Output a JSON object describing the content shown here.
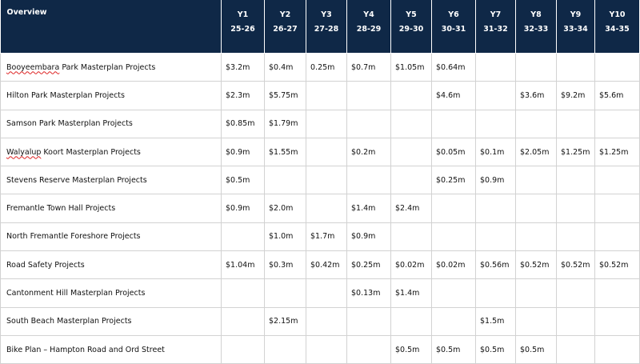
{
  "header": {
    "overview_label": "Overview",
    "years": [
      {
        "label": "Y1",
        "span": "25-26"
      },
      {
        "label": "Y2",
        "span": "26-27"
      },
      {
        "label": "Y3",
        "span": "27-28"
      },
      {
        "label": "Y4",
        "span": "28-29"
      },
      {
        "label": "Y5",
        "span": "29-30"
      },
      {
        "label": "Y6",
        "span": "30-31"
      },
      {
        "label": "Y7",
        "span": "31-32"
      },
      {
        "label": "Y8",
        "span": "32-33"
      },
      {
        "label": "Y9",
        "span": "33-34"
      },
      {
        "label": "Y10",
        "span": "34-35"
      }
    ]
  },
  "rows": [
    {
      "name_spell": "Booyeembara",
      "name_rest": " Park Masterplan Projects",
      "values": [
        "$3.2m",
        "$0.4m",
        "0.25m",
        "$0.7m",
        "$1.05m",
        "$0.64m",
        "",
        "",
        "",
        ""
      ]
    },
    {
      "name_spell": "",
      "name_rest": "Hilton Park Masterplan Projects",
      "values": [
        "$2.3m",
        "$5.75m",
        "",
        "",
        "",
        "$4.6m",
        "",
        "$3.6m",
        "$9.2m",
        "$5.6m"
      ]
    },
    {
      "name_spell": "",
      "name_rest": "Samson Park Masterplan Projects",
      "values": [
        "$0.85m",
        "$1.79m",
        "",
        "",
        "",
        "",
        "",
        "",
        "",
        ""
      ]
    },
    {
      "name_spell": "Walyalup",
      "name_rest": " Koort Masterplan Projects",
      "values": [
        "$0.9m",
        "$1.55m",
        "",
        "$0.2m",
        "",
        "$0.05m",
        "$0.1m",
        "$2.05m",
        "$1.25m",
        "$1.25m"
      ]
    },
    {
      "name_spell": "",
      "name_rest": "Stevens Reserve Masterplan Projects",
      "values": [
        "$0.5m",
        "",
        "",
        "",
        "",
        "$0.25m",
        "$0.9m",
        "",
        "",
        ""
      ]
    },
    {
      "name_spell": "",
      "name_rest": "Fremantle Town Hall Projects",
      "values": [
        "$0.9m",
        "$2.0m",
        "",
        "$1.4m",
        "$2.4m",
        "",
        "",
        "",
        "",
        ""
      ]
    },
    {
      "name_spell": "",
      "name_rest": "North Fremantle Foreshore Projects",
      "values": [
        "",
        "$1.0m",
        "$1.7m",
        "$0.9m",
        "",
        "",
        "",
        "",
        "",
        ""
      ]
    },
    {
      "name_spell": "",
      "name_rest": "Road Safety Projects",
      "values": [
        "$1.04m",
        "$0.3m",
        "$0.42m",
        "$0.25m",
        "$0.02m",
        "$0.02m",
        "$0.56m",
        "$0.52m",
        "$0.52m",
        "$0.52m"
      ]
    },
    {
      "name_spell": "",
      "name_rest": "Cantonment Hill Masterplan Projects",
      "values": [
        "",
        "",
        "",
        "$0.13m",
        "$1.4m",
        "",
        "",
        "",
        "",
        ""
      ]
    },
    {
      "name_spell": "",
      "name_rest": "South Beach Masterplan Projects",
      "values": [
        "",
        "$2.15m",
        "",
        "",
        "",
        "",
        "$1.5m",
        "",
        "",
        ""
      ]
    },
    {
      "name_spell": "",
      "name_rest": "Bike Plan – Hampton Road and Ord Street",
      "values": [
        "",
        "",
        "",
        "",
        "$0.5m",
        "$0.5m",
        "$0.5m",
        "$0.5m",
        "",
        ""
      ]
    }
  ],
  "colors": {
    "header_bg": "#0f2847",
    "header_text": "#ffffff",
    "grid": "#d2d2d2"
  }
}
